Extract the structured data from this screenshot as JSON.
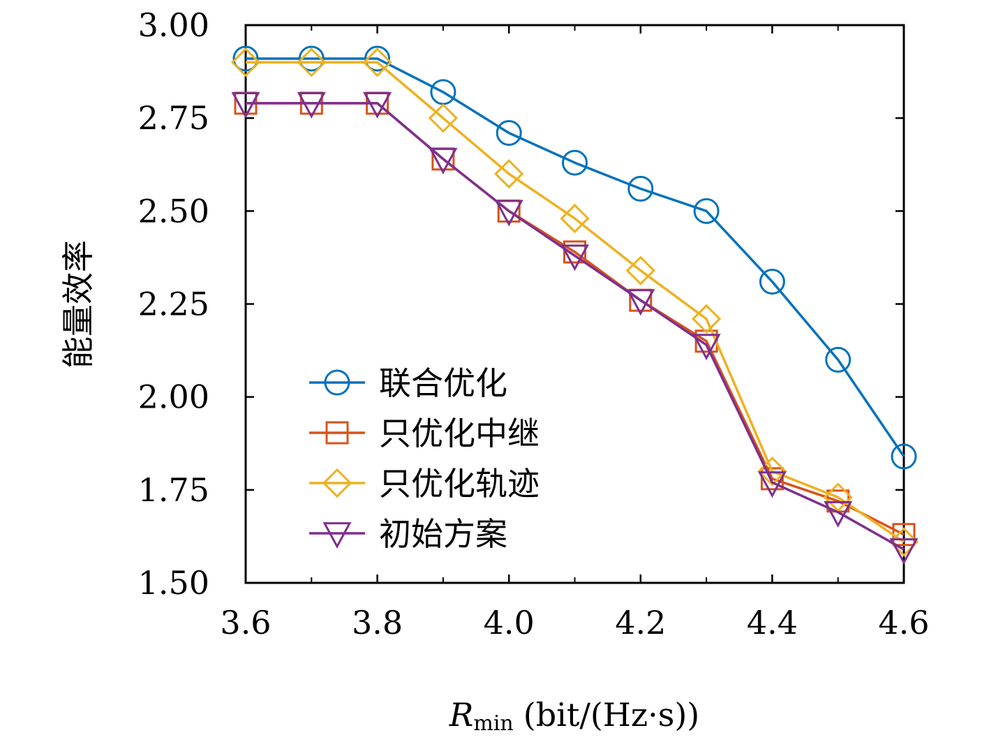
{
  "chart_data": {
    "type": "line",
    "title": "",
    "xlabel": "R_min (bit/(Hz·s))",
    "xlabel_main": "R",
    "xlabel_sub": "min",
    "xlabel_unit": "(bit/(Hz·s))",
    "ylabel": "能量效率",
    "xlim": [
      3.6,
      4.6
    ],
    "ylim": [
      1.5,
      3.0
    ],
    "grid": false,
    "legend_position": "lower-left",
    "x_ticks": [
      "3.6",
      "3.8",
      "4.0",
      "4.2",
      "4.4",
      "4.6"
    ],
    "y_ticks": [
      "1.50",
      "1.75",
      "2.00",
      "2.25",
      "2.50",
      "2.75",
      "3.00"
    ],
    "x": [
      3.6,
      3.7,
      3.8,
      3.9,
      4.0,
      4.1,
      4.2,
      4.3,
      4.4,
      4.5,
      4.6
    ],
    "series": [
      {
        "name": "联合优化",
        "color": "#0072BD",
        "marker": "circle",
        "values": [
          2.91,
          2.91,
          2.91,
          2.82,
          2.71,
          2.63,
          2.56,
          2.5,
          2.31,
          2.1,
          1.84
        ]
      },
      {
        "name": "只优化中继",
        "color": "#D95319",
        "marker": "square",
        "values": [
          2.79,
          2.79,
          2.79,
          2.64,
          2.5,
          2.39,
          2.26,
          2.15,
          1.78,
          1.72,
          1.63
        ]
      },
      {
        "name": "只优化轨迹",
        "color": "#EDB120",
        "marker": "diamond",
        "values": [
          2.9,
          2.9,
          2.9,
          2.75,
          2.6,
          2.48,
          2.34,
          2.21,
          1.8,
          1.73,
          1.61
        ]
      },
      {
        "name": "初始方案",
        "color": "#7E2F8E",
        "marker": "triangle-down",
        "values": [
          2.79,
          2.79,
          2.79,
          2.64,
          2.5,
          2.38,
          2.26,
          2.14,
          1.77,
          1.69,
          1.59
        ]
      }
    ]
  }
}
